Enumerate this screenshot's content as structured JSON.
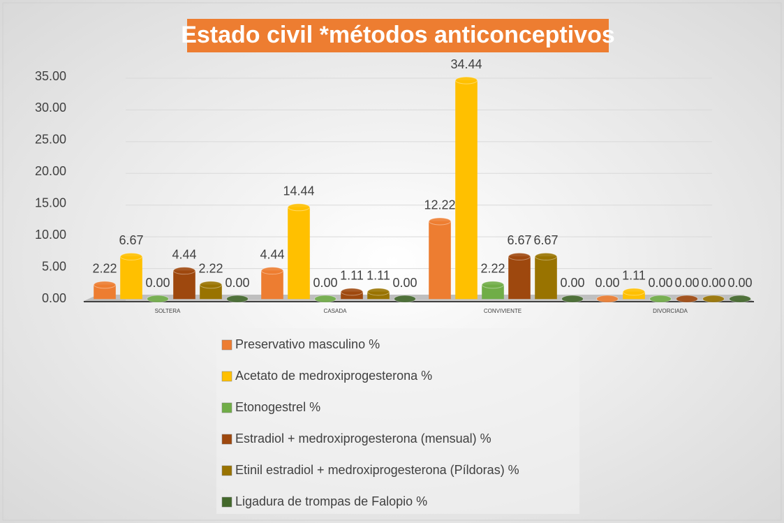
{
  "chart_data": {
    "type": "bar3d",
    "title": "Estado civil *métodos anticonceptivos",
    "categories": [
      "SOLTERA",
      "CASADA",
      "CONVIVIENTE",
      "DIVORCIADA"
    ],
    "series": [
      {
        "name": "Preservativo masculino %",
        "color": "#ed7d31",
        "values": [
          2.22,
          4.44,
          12.22,
          0.0
        ],
        "value_labels": [
          "2.22",
          "4.44",
          "12.22",
          "0.00"
        ]
      },
      {
        "name": "Acetato de medroxiprogesterona %",
        "color": "#ffc000",
        "values": [
          6.67,
          14.44,
          34.44,
          1.11
        ],
        "value_labels": [
          "6.67",
          "14.44",
          "34.44",
          "1.11"
        ]
      },
      {
        "name": "Etonogestrel %",
        "color": "#70ad47",
        "values": [
          0.0,
          0.0,
          2.22,
          0.0
        ],
        "value_labels": [
          "0.00",
          "0.00",
          "2.22",
          "0.00"
        ]
      },
      {
        "name": "Estradiol + medroxiprogesterona (mensual) %",
        "color": "#9e480e",
        "values": [
          4.44,
          1.11,
          6.67,
          0.0
        ],
        "value_labels": [
          "4.44",
          "1.11",
          "6.67",
          "0.00"
        ]
      },
      {
        "name": "Etinil estradiol + medroxiprogesterona (Píldoras) %",
        "color": "#997300",
        "values": [
          2.22,
          1.11,
          6.67,
          0.0
        ],
        "value_labels": [
          "2.22",
          "1.11",
          "6.67",
          "0.00"
        ]
      },
      {
        "name": "Ligadura de trompas de Falopio %",
        "color": "#43682b",
        "values": [
          0.0,
          0.0,
          0.0,
          0.0
        ],
        "value_labels": [
          "0.00",
          "0.00",
          "0.00",
          "0.00"
        ]
      }
    ],
    "ylim": [
      0,
      35
    ],
    "yticks": [
      {
        "value": 0,
        "label": "0.00"
      },
      {
        "value": 5,
        "label": "5.00"
      },
      {
        "value": 10,
        "label": "10.00"
      },
      {
        "value": 15,
        "label": "15.00"
      },
      {
        "value": 20,
        "label": "20.00"
      },
      {
        "value": 25,
        "label": "25.00"
      },
      {
        "value": 30,
        "label": "30.00"
      },
      {
        "value": 35,
        "label": "35.00"
      }
    ],
    "grid": true
  }
}
